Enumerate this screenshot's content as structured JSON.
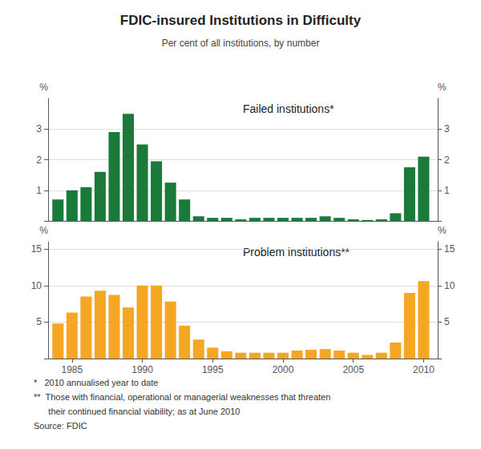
{
  "chart_data": [
    {
      "type": "bar",
      "title": "FDIC-insured Institutions in Difficulty",
      "subtitle": "Per cent of all institutions, by number",
      "x": [
        1984,
        1985,
        1986,
        1987,
        1988,
        1989,
        1990,
        1991,
        1992,
        1993,
        1994,
        1995,
        1996,
        1997,
        1998,
        1999,
        2000,
        2001,
        2002,
        2003,
        2004,
        2005,
        2006,
        2007,
        2008,
        2009,
        2010
      ],
      "values": [
        0.7,
        1.0,
        1.1,
        1.6,
        2.9,
        3.5,
        2.5,
        1.95,
        1.25,
        0.7,
        0.15,
        0.1,
        0.1,
        0.05,
        0.1,
        0.1,
        0.1,
        0.1,
        0.1,
        0.15,
        0.1,
        0.05,
        0.03,
        0.05,
        0.25,
        1.75,
        2.1
      ],
      "color": "#1a7a3a",
      "xlim": [
        1983.3,
        2011.0
      ],
      "ylim": [
        0,
        4
      ],
      "yticks": [
        {
          "value": 0,
          "label": ""
        },
        1,
        2,
        3
      ],
      "y2lim": [
        0,
        4
      ],
      "y2ticks": [
        {
          "value": 0,
          "label": ""
        },
        1,
        2,
        3
      ],
      "ylabel": "%",
      "y2label": "%",
      "annotations": [
        "Failed institutions*"
      ],
      "grid": true,
      "tick_labels": "y"
    },
    {
      "type": "bar",
      "x": [
        1984,
        1985,
        1986,
        1987,
        1988,
        1989,
        1990,
        1991,
        1992,
        1993,
        1994,
        1995,
        1996,
        1997,
        1998,
        1999,
        2000,
        2001,
        2002,
        2003,
        2004,
        2005,
        2006,
        2007,
        2008,
        2009,
        2010
      ],
      "values": [
        4.8,
        6.3,
        8.5,
        9.3,
        8.7,
        7.0,
        10.0,
        10.0,
        7.8,
        4.5,
        2.6,
        1.5,
        1.0,
        0.8,
        0.8,
        0.8,
        0.8,
        1.1,
        1.2,
        1.3,
        1.1,
        0.8,
        0.5,
        0.8,
        2.2,
        9.0,
        10.6
      ],
      "color": "#f5a623",
      "xlim": [
        1983.3,
        2011.0
      ],
      "xticks": [
        1985,
        1990,
        1995,
        2000,
        2005,
        2010
      ],
      "ylim": [
        0,
        16
      ],
      "yticks": [
        {
          "value": 0,
          "label": ""
        },
        5,
        10,
        15
      ],
      "y2lim": [
        0,
        16
      ],
      "y2ticks": [
        {
          "value": 0,
          "label": ""
        },
        5,
        10,
        15
      ],
      "ylabel": "%",
      "y2label": "%",
      "annotations": [
        "Problem institutions**",
        "*   2010 annualised year to date",
        "**  Those with financial, operational or managerial weaknesses that threaten",
        "      their continued financial viability; as at June 2010",
        "Source: FDIC"
      ],
      "grid": true
    }
  ]
}
